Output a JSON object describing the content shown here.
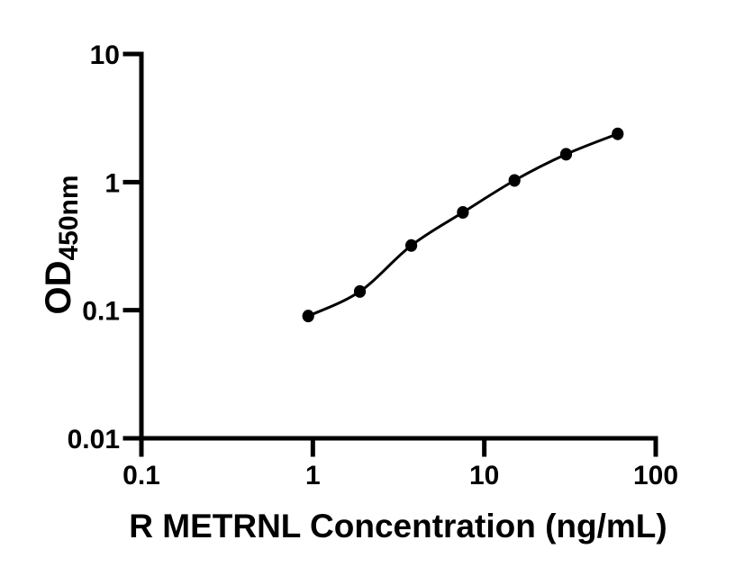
{
  "figure": {
    "background": "#ffffff"
  },
  "chart_data": {
    "type": "scatter",
    "subtype": "log-log standard curve with fitted line",
    "title": "",
    "xlabel": "R METRNL Concentration (ng/mL)",
    "ylabel": "OD",
    "ylabel_subscript": "450nm",
    "x_scale": "log10",
    "y_scale": "log10",
    "xlim": [
      0.1,
      100
    ],
    "ylim": [
      0.01,
      10
    ],
    "x_ticks": [
      0.1,
      1,
      10,
      100
    ],
    "x_tick_labels": [
      "0.1",
      "1",
      "10",
      "100"
    ],
    "y_ticks": [
      0.01,
      0.1,
      1,
      10
    ],
    "y_tick_labels": [
      "0.01",
      "0.1",
      "1",
      "10"
    ],
    "grid": false,
    "legend": false,
    "axis_color": "#000000",
    "marker_color": "#000000",
    "line_color": "#000000",
    "series": [
      {
        "name": "standard-curve",
        "marker": "filled-circle",
        "points_x": [
          0.94,
          1.88,
          3.75,
          7.5,
          15,
          30,
          60
        ],
        "points_y": [
          0.09,
          0.14,
          0.32,
          0.58,
          1.03,
          1.65,
          2.38
        ]
      }
    ]
  }
}
